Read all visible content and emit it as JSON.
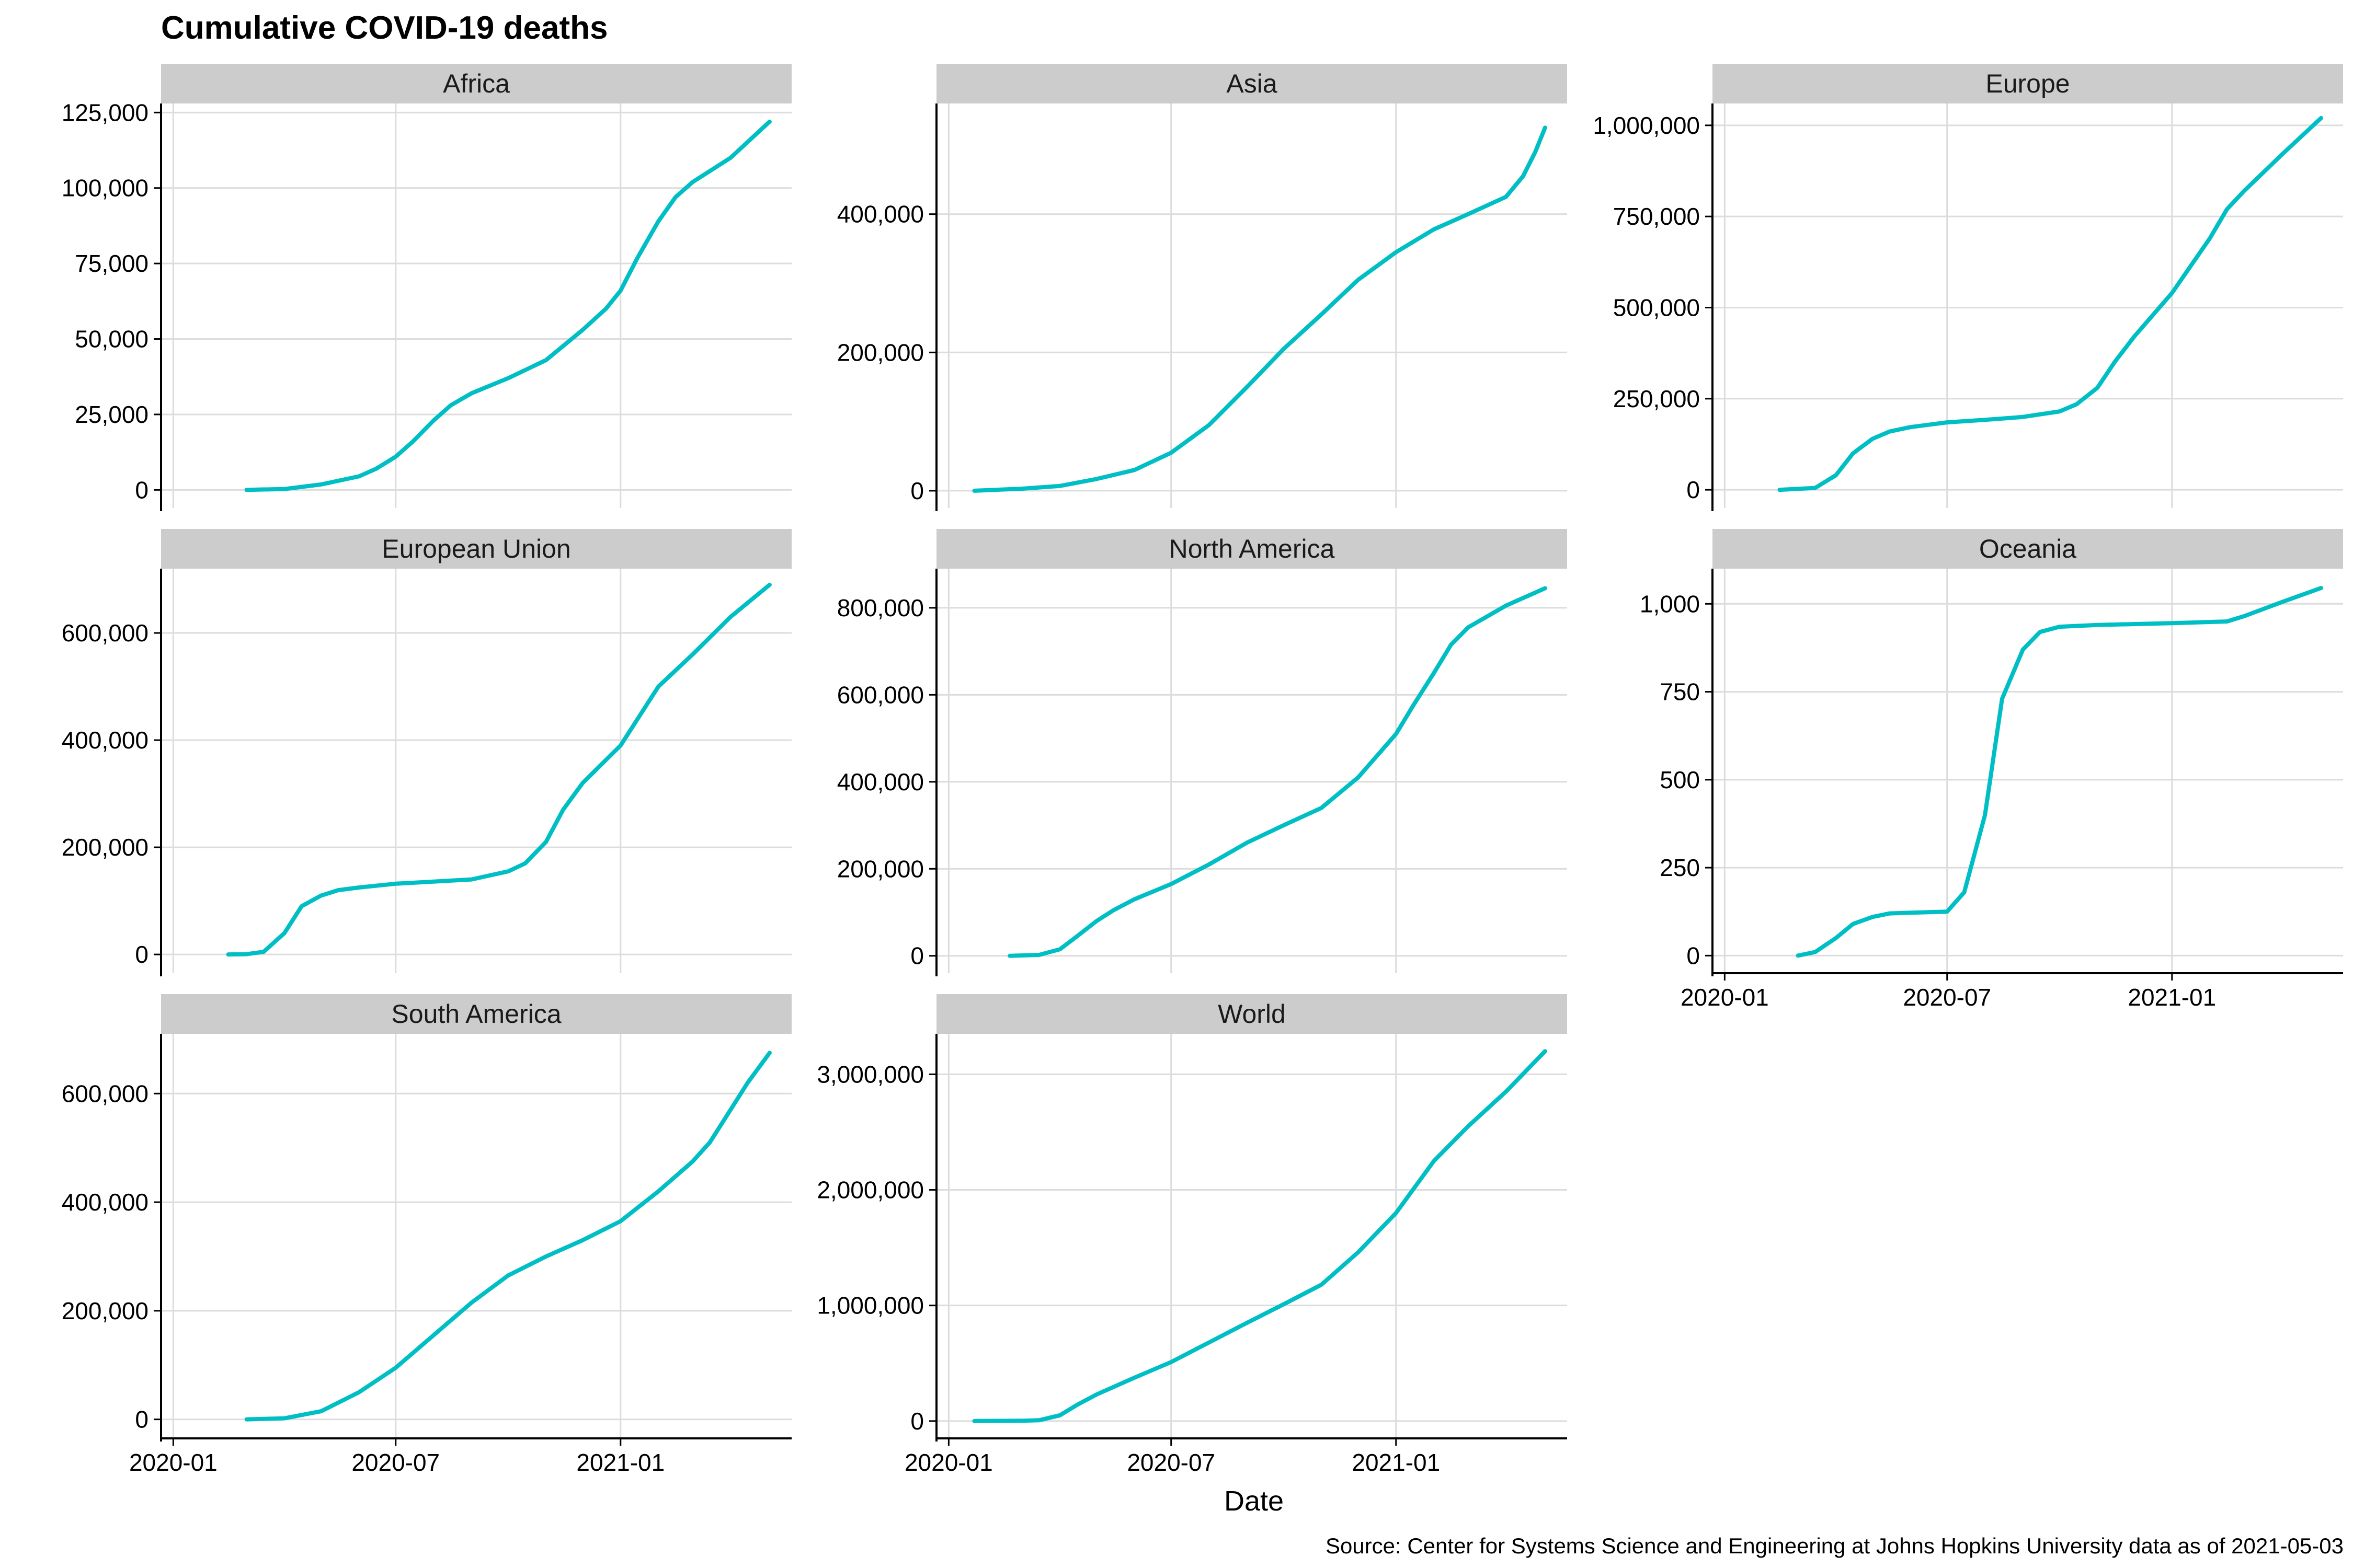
{
  "figure": {
    "title": "Cumulative COVID-19 deaths",
    "xlabel": "Date",
    "caption": "Source: Center for Systems Science and Engineering at Johns Hopkins University data as of 2021-05-03"
  },
  "chart_data": {
    "type": "line",
    "title": "Cumulative COVID-19 deaths",
    "xlabel": "Date",
    "ylabel": "",
    "x_ticks": [
      "2020-01",
      "2020-07",
      "2021-01"
    ],
    "xlim": [
      "2019-12-22",
      "2021-05-21"
    ],
    "grid": true,
    "legend": "none",
    "series_color": "#00BFC4",
    "panels": [
      {
        "name": "Africa",
        "y_ticks": [
          0,
          25000,
          50000,
          75000,
          100000,
          125000
        ],
        "y_tick_labels": [
          "0",
          "25,000",
          "50,000",
          "75,000",
          "100,000",
          "125,000"
        ],
        "ylim": [
          -6000,
          128000
        ],
        "points": [
          [
            "2020-03-01",
            0
          ],
          [
            "2020-04-01",
            300
          ],
          [
            "2020-05-01",
            1800
          ],
          [
            "2020-06-01",
            4500
          ],
          [
            "2020-06-15",
            7000
          ],
          [
            "2020-07-01",
            11000
          ],
          [
            "2020-07-15",
            16000
          ],
          [
            "2020-08-01",
            23000
          ],
          [
            "2020-08-15",
            28000
          ],
          [
            "2020-09-01",
            32000
          ],
          [
            "2020-10-01",
            37000
          ],
          [
            "2020-11-01",
            43000
          ],
          [
            "2020-12-01",
            53000
          ],
          [
            "2020-12-20",
            60000
          ],
          [
            "2021-01-01",
            66000
          ],
          [
            "2021-01-15",
            77000
          ],
          [
            "2021-02-01",
            89000
          ],
          [
            "2021-02-15",
            97000
          ],
          [
            "2021-03-01",
            102000
          ],
          [
            "2021-04-01",
            110000
          ],
          [
            "2021-05-03",
            122000
          ]
        ]
      },
      {
        "name": "Asia",
        "y_ticks": [
          0,
          200000,
          400000
        ],
        "y_tick_labels": [
          "0",
          "200,000",
          "400,000"
        ],
        "ylim": [
          -25000,
          560000
        ],
        "points": [
          [
            "2020-01-22",
            0
          ],
          [
            "2020-03-01",
            3000
          ],
          [
            "2020-04-01",
            7000
          ],
          [
            "2020-05-01",
            17000
          ],
          [
            "2020-06-01",
            30000
          ],
          [
            "2020-07-01",
            55000
          ],
          [
            "2020-08-01",
            95000
          ],
          [
            "2020-09-01",
            150000
          ],
          [
            "2020-10-01",
            205000
          ],
          [
            "2020-11-01",
            255000
          ],
          [
            "2020-12-01",
            305000
          ],
          [
            "2021-01-01",
            345000
          ],
          [
            "2021-02-01",
            378000
          ],
          [
            "2021-03-01",
            400000
          ],
          [
            "2021-04-01",
            425000
          ],
          [
            "2021-04-15",
            455000
          ],
          [
            "2021-04-25",
            490000
          ],
          [
            "2021-05-03",
            525000
          ]
        ]
      },
      {
        "name": "Europe",
        "y_ticks": [
          0,
          250000,
          500000,
          750000,
          1000000
        ],
        "y_tick_labels": [
          "0",
          "250,000",
          "500,000",
          "750,000",
          "1,000,000"
        ],
        "ylim": [
          -50000,
          1060000
        ],
        "points": [
          [
            "2020-02-15",
            0
          ],
          [
            "2020-03-15",
            5000
          ],
          [
            "2020-04-01",
            40000
          ],
          [
            "2020-04-15",
            100000
          ],
          [
            "2020-05-01",
            140000
          ],
          [
            "2020-05-15",
            160000
          ],
          [
            "2020-06-01",
            172000
          ],
          [
            "2020-07-01",
            185000
          ],
          [
            "2020-08-01",
            192000
          ],
          [
            "2020-09-01",
            200000
          ],
          [
            "2020-10-01",
            215000
          ],
          [
            "2020-10-15",
            235000
          ],
          [
            "2020-11-01",
            280000
          ],
          [
            "2020-11-15",
            350000
          ],
          [
            "2020-12-01",
            420000
          ],
          [
            "2021-01-01",
            540000
          ],
          [
            "2021-02-01",
            690000
          ],
          [
            "2021-02-15",
            770000
          ],
          [
            "2021-03-01",
            820000
          ],
          [
            "2021-04-01",
            920000
          ],
          [
            "2021-05-03",
            1020000
          ]
        ]
      },
      {
        "name": "European Union",
        "y_ticks": [
          0,
          200000,
          400000,
          600000
        ],
        "y_tick_labels": [
          "0",
          "200,000",
          "400,000",
          "600,000"
        ],
        "ylim": [
          -35000,
          720000
        ],
        "points": [
          [
            "2020-02-15",
            0
          ],
          [
            "2020-03-01",
            500
          ],
          [
            "2020-03-15",
            5000
          ],
          [
            "2020-04-01",
            40000
          ],
          [
            "2020-04-15",
            90000
          ],
          [
            "2020-05-01",
            110000
          ],
          [
            "2020-05-15",
            120000
          ],
          [
            "2020-06-01",
            125000
          ],
          [
            "2020-07-01",
            132000
          ],
          [
            "2020-08-01",
            136000
          ],
          [
            "2020-09-01",
            140000
          ],
          [
            "2020-10-01",
            155000
          ],
          [
            "2020-10-15",
            170000
          ],
          [
            "2020-11-01",
            210000
          ],
          [
            "2020-11-15",
            270000
          ],
          [
            "2020-12-01",
            320000
          ],
          [
            "2021-01-01",
            390000
          ],
          [
            "2021-02-01",
            500000
          ],
          [
            "2021-03-01",
            560000
          ],
          [
            "2021-04-01",
            630000
          ],
          [
            "2021-05-03",
            690000
          ]
        ]
      },
      {
        "name": "North America",
        "y_ticks": [
          0,
          200000,
          400000,
          600000,
          800000
        ],
        "y_tick_labels": [
          "0",
          "200,000",
          "400,000",
          "600,000",
          "800,000"
        ],
        "ylim": [
          -40000,
          890000
        ],
        "points": [
          [
            "2020-02-20",
            0
          ],
          [
            "2020-03-15",
            2000
          ],
          [
            "2020-04-01",
            15000
          ],
          [
            "2020-04-15",
            45000
          ],
          [
            "2020-05-01",
            80000
          ],
          [
            "2020-05-15",
            105000
          ],
          [
            "2020-06-01",
            130000
          ],
          [
            "2020-07-01",
            165000
          ],
          [
            "2020-08-01",
            210000
          ],
          [
            "2020-09-01",
            260000
          ],
          [
            "2020-10-01",
            300000
          ],
          [
            "2020-11-01",
            340000
          ],
          [
            "2020-12-01",
            410000
          ],
          [
            "2021-01-01",
            510000
          ],
          [
            "2021-01-15",
            575000
          ],
          [
            "2021-02-01",
            650000
          ],
          [
            "2021-02-15",
            715000
          ],
          [
            "2021-03-01",
            755000
          ],
          [
            "2021-04-01",
            805000
          ],
          [
            "2021-05-03",
            845000
          ]
        ]
      },
      {
        "name": "Oceania",
        "y_ticks": [
          0,
          250,
          500,
          750,
          1000
        ],
        "y_tick_labels": [
          "0",
          "250",
          "500",
          "750",
          "1,000"
        ],
        "ylim": [
          -50,
          1100
        ],
        "points": [
          [
            "2020-03-01",
            0
          ],
          [
            "2020-03-15",
            10
          ],
          [
            "2020-04-01",
            50
          ],
          [
            "2020-04-15",
            90
          ],
          [
            "2020-05-01",
            110
          ],
          [
            "2020-05-15",
            120
          ],
          [
            "2020-06-01",
            122
          ],
          [
            "2020-07-01",
            125
          ],
          [
            "2020-07-15",
            180
          ],
          [
            "2020-08-01",
            400
          ],
          [
            "2020-08-15",
            730
          ],
          [
            "2020-09-01",
            870
          ],
          [
            "2020-09-15",
            920
          ],
          [
            "2020-10-01",
            935
          ],
          [
            "2020-11-01",
            940
          ],
          [
            "2021-01-01",
            945
          ],
          [
            "2021-02-15",
            950
          ],
          [
            "2021-03-01",
            965
          ],
          [
            "2021-04-01",
            1005
          ],
          [
            "2021-05-03",
            1045
          ]
        ]
      },
      {
        "name": "South America",
        "y_ticks": [
          0,
          200000,
          400000,
          600000
        ],
        "y_tick_labels": [
          "0",
          "200,000",
          "400,000",
          "600,000"
        ],
        "ylim": [
          -35000,
          710000
        ],
        "points": [
          [
            "2020-03-01",
            0
          ],
          [
            "2020-04-01",
            2000
          ],
          [
            "2020-05-01",
            15000
          ],
          [
            "2020-06-01",
            50000
          ],
          [
            "2020-07-01",
            95000
          ],
          [
            "2020-08-01",
            155000
          ],
          [
            "2020-09-01",
            215000
          ],
          [
            "2020-10-01",
            265000
          ],
          [
            "2020-11-01",
            300000
          ],
          [
            "2020-12-01",
            330000
          ],
          [
            "2021-01-01",
            365000
          ],
          [
            "2021-02-01",
            420000
          ],
          [
            "2021-03-01",
            475000
          ],
          [
            "2021-03-15",
            510000
          ],
          [
            "2021-04-01",
            570000
          ],
          [
            "2021-04-15",
            620000
          ],
          [
            "2021-05-03",
            675000
          ]
        ]
      },
      {
        "name": "World",
        "y_ticks": [
          0,
          1000000,
          2000000,
          3000000
        ],
        "y_tick_labels": [
          "0",
          "1,000,000",
          "2,000,000",
          "3,000,000"
        ],
        "ylim": [
          -150000,
          3350000
        ],
        "points": [
          [
            "2020-01-22",
            0
          ],
          [
            "2020-03-01",
            3000
          ],
          [
            "2020-03-15",
            7000
          ],
          [
            "2020-04-01",
            50000
          ],
          [
            "2020-04-15",
            140000
          ],
          [
            "2020-05-01",
            230000
          ],
          [
            "2020-06-01",
            375000
          ],
          [
            "2020-07-01",
            510000
          ],
          [
            "2020-08-01",
            680000
          ],
          [
            "2020-09-01",
            850000
          ],
          [
            "2020-10-01",
            1010000
          ],
          [
            "2020-11-01",
            1180000
          ],
          [
            "2020-12-01",
            1460000
          ],
          [
            "2021-01-01",
            1800000
          ],
          [
            "2021-02-01",
            2250000
          ],
          [
            "2021-03-01",
            2550000
          ],
          [
            "2021-04-01",
            2850000
          ],
          [
            "2021-05-03",
            3200000
          ]
        ]
      }
    ]
  }
}
